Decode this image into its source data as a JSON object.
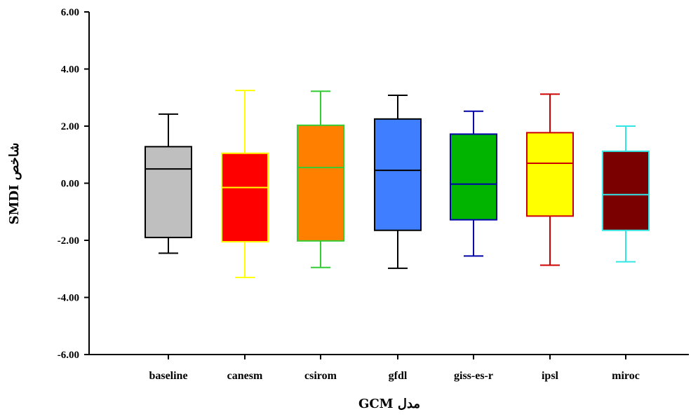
{
  "chart_data": {
    "type": "box",
    "title": "",
    "xlabel": "GCM مدل",
    "ylabel": "SMDI شاخص",
    "ylim": [
      -6,
      6
    ],
    "yticks": [
      "6.00",
      "4.00",
      "2.00",
      "0.00",
      "-2.00",
      "-4.00",
      "-6.00"
    ],
    "grid": false,
    "legend": "none",
    "categories": [
      "baseline",
      "canesm",
      "csirom",
      "gfdl",
      "giss-es-r",
      "ipsl",
      "miroc"
    ],
    "boxes": [
      {
        "category": "baseline",
        "min": -2.45,
        "q1": -1.9,
        "median": 0.5,
        "q3": 1.28,
        "max": 2.42,
        "fill": "#bfbfbf",
        "stroke": "#000000"
      },
      {
        "category": "canesm",
        "min": -3.3,
        "q1": -2.05,
        "median": -0.15,
        "q3": 1.05,
        "max": 3.25,
        "fill": "#ff0000",
        "stroke": "#ffff00"
      },
      {
        "category": "csirom",
        "min": -2.95,
        "q1": -2.02,
        "median": 0.55,
        "q3": 2.03,
        "max": 3.22,
        "fill": "#ff8000",
        "stroke": "#33cc33"
      },
      {
        "category": "gfdl",
        "min": -2.98,
        "q1": -1.65,
        "median": 0.45,
        "q3": 2.25,
        "max": 3.08,
        "fill": "#3f7fff",
        "stroke": "#000000"
      },
      {
        "category": "giss-es-r",
        "min": -2.55,
        "q1": -1.28,
        "median": -0.03,
        "q3": 1.72,
        "max": 2.52,
        "fill": "#00b400",
        "stroke": "#0000aa"
      },
      {
        "category": "ipsl",
        "min": -2.87,
        "q1": -1.15,
        "median": 0.7,
        "q3": 1.77,
        "max": 3.12,
        "fill": "#ffff00",
        "stroke": "#cc0000"
      },
      {
        "category": "miroc",
        "min": -2.75,
        "q1": -1.65,
        "median": -0.4,
        "q3": 1.12,
        "max": 2.0,
        "fill": "#7a0000",
        "stroke": "#33e6e6"
      }
    ]
  }
}
